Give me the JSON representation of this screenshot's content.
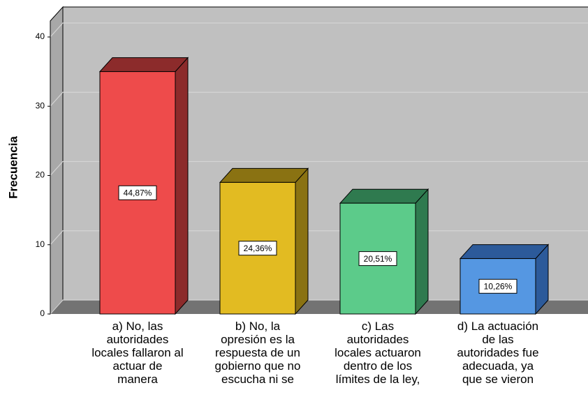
{
  "chart_data": {
    "type": "bar3d",
    "y_label": "Frecuencia",
    "categories": [
      "a) No, las\nautoridades\nlocales fallaron al\nactuar de\nmanera",
      "b) No, la\nopresión es la\nrespuesta de un\ngobierno que no\nescucha ni se",
      "c) Las\nautoridades\nlocales actuaron\ndentro de los\nlímites de la ley,",
      "d) La actuación\nde las\nautoridades fue\nadecuada, ya\nque se vieron"
    ],
    "values": [
      35,
      19,
      16,
      8
    ],
    "value_labels": [
      "44,87%",
      "24,36%",
      "20,51%",
      "10,26%"
    ],
    "colors": [
      "#ee4b4b",
      "#e2bb22",
      "#5ccb8a",
      "#5597e2"
    ],
    "side_colors": [
      "#8c2b2b",
      "#8a7212",
      "#2f7a4f",
      "#2c5a9a"
    ],
    "ylim": [
      0,
      40
    ],
    "yticks": [
      0,
      10,
      20,
      30,
      40
    ],
    "grid": true
  }
}
